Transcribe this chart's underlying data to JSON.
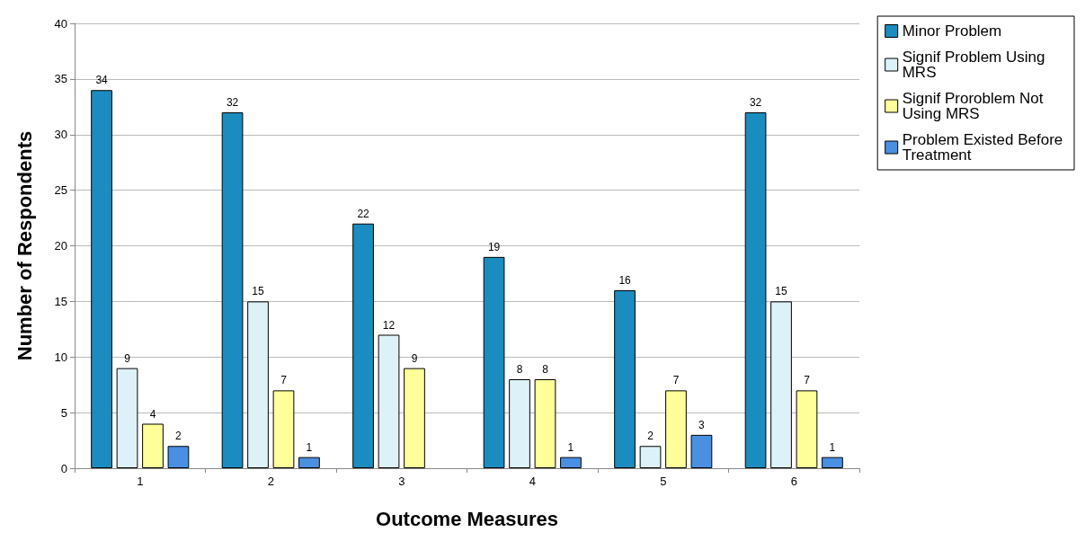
{
  "chart_data": {
    "type": "bar",
    "xlabel": "Outcome Measures",
    "ylabel": "Number of Respondents",
    "categories": [
      "1",
      "2",
      "3",
      "4",
      "5",
      "6"
    ],
    "series": [
      {
        "name": "Minor Problem",
        "color": "#1a8cbf",
        "values": [
          34,
          32,
          22,
          19,
          16,
          32
        ]
      },
      {
        "name": "Signif Problem Using MRS",
        "color": "#ddf1f8",
        "values": [
          9,
          15,
          12,
          8,
          2,
          15
        ]
      },
      {
        "name": "Signif Proroblem Not Using MRS",
        "color": "#ffff99",
        "values": [
          4,
          7,
          9,
          8,
          7,
          7
        ]
      },
      {
        "name": "Problem Existed Before Treatment",
        "color": "#4a90e2",
        "values": [
          2,
          1,
          null,
          1,
          3,
          1
        ]
      }
    ],
    "ylim": [
      0,
      40
    ],
    "yticks": [
      0,
      5,
      10,
      15,
      20,
      25,
      30,
      35,
      40
    ],
    "grid": "y",
    "legend": "right",
    "data_labels": true
  }
}
